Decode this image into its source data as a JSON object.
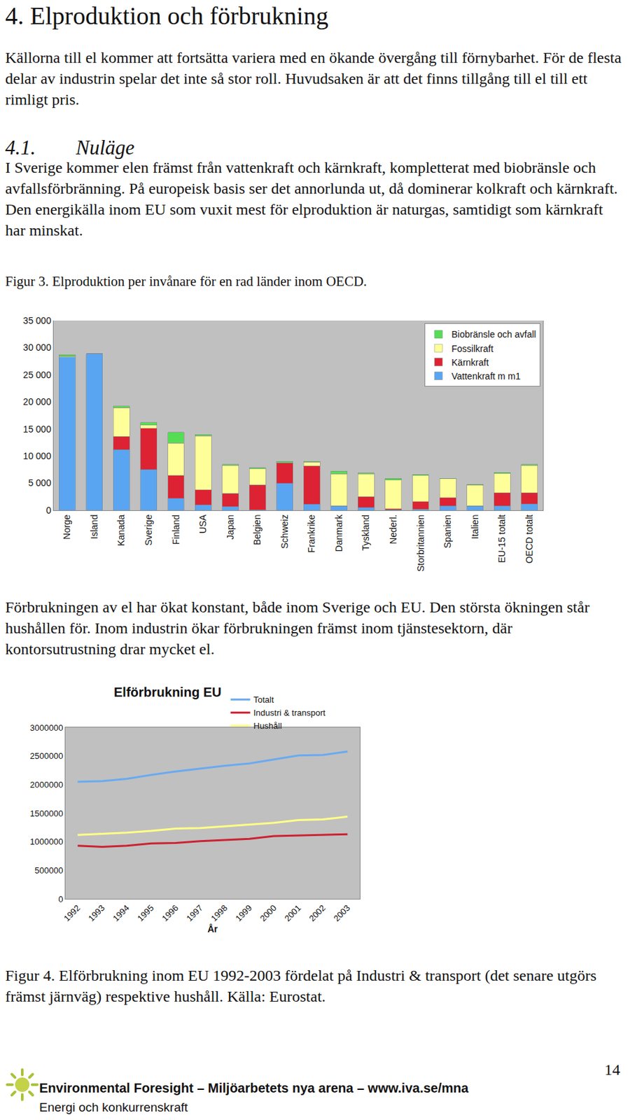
{
  "document": {
    "heading": "4. Elproduktion och förbrukning",
    "intro": "Källorna till el kommer att fortsätta variera med en ökande övergång till förnybarhet. För de flesta delar av industrin spelar det inte så stor roll. Huvudsaken är att det finns tillgång till el till ett rimligt pris.",
    "section": {
      "number": "4.1.",
      "title": "Nuläge"
    },
    "paragraph1": "I Sverige kommer elen främst från vattenkraft och kärnkraft, kompletterat med biobränsle och avfallsförbränning. På europeisk basis ser det annorlunda ut, då dominerar kolkraft och kärnkraft. Den energikälla inom EU som vuxit mest för elproduktion är naturgas, samtidigt som kärnkraft har minskat.",
    "figure3_caption": "Figur 3. Elproduktion per invånare för en rad länder inom OECD.",
    "paragraph2": "Förbrukningen av el har ökat konstant, både inom Sverige och EU. Den största ökningen står hushållen för. Inom industrin ökar förbrukningen främst inom tjänstesektorn, där kontorsutrustning drar mycket el.",
    "figure4_caption": "Figur 4. Elförbrukning inom EU 1992-2003 fördelat på Industri & transport (det senare utgörs främst järnväg) respektive hushåll. Källa: Eurostat.",
    "footer": {
      "line1": "Environmental Foresight – Miljöarbetets nya arena – www.iva.se/mna",
      "line2": "Energi och konkurrenskraft",
      "page": 14
    }
  },
  "chart_data": [
    {
      "type": "bar",
      "stacked": true,
      "grid": false,
      "legend": "top right",
      "categories": [
        "Norge",
        "Island",
        "Kanada",
        "Sverige",
        "Finland",
        "USA",
        "Japan",
        "Belgien",
        "Schweiz",
        "Frankrike",
        "Danmark",
        "Tyskland",
        "Nederl.",
        "Storbritannien",
        "Spanien",
        "Italien",
        "EU-15 totalt",
        "OECD totalt"
      ],
      "series": [
        {
          "name": "Vattenkraft m m1",
          "color": "#5aa5f2",
          "values": [
            28300,
            28900,
            11200,
            7500,
            2200,
            1000,
            700,
            100,
            5000,
            1100,
            800,
            500,
            100,
            200,
            800,
            800,
            800,
            1200
          ]
        },
        {
          "name": "Kärnkraft",
          "color": "#dd2233",
          "values": [
            0,
            0,
            2400,
            7600,
            4200,
            2800,
            2400,
            4600,
            3700,
            7100,
            0,
            2000,
            200,
            1400,
            1500,
            0,
            2400,
            2000
          ]
        },
        {
          "name": "Fossilkraft",
          "color": "#ffff99",
          "values": [
            100,
            0,
            5300,
            600,
            6000,
            9900,
            5200,
            3000,
            100,
            700,
            5900,
            4200,
            5300,
            4800,
            3500,
            3900,
            3600,
            5100
          ]
        },
        {
          "name": "Biobränsle och avfall",
          "color": "#55dd55",
          "values": [
            300,
            0,
            300,
            500,
            2000,
            300,
            200,
            200,
            200,
            100,
            500,
            200,
            300,
            200,
            100,
            100,
            200,
            200
          ]
        }
      ],
      "ylim": [
        0,
        35000
      ],
      "yticks": [
        0,
        {
          "value": 5000,
          "label": "5 000"
        },
        {
          "value": 10000,
          "label": "10 000"
        },
        {
          "value": 15000,
          "label": "15 000"
        },
        {
          "value": 20000,
          "label": "20 000"
        },
        {
          "value": 25000,
          "label": "25 000"
        },
        {
          "value": 30000,
          "label": "30 000"
        },
        {
          "value": 35000,
          "label": "35 000"
        }
      ]
    },
    {
      "type": "line",
      "title": "Elförbrukning EU",
      "xlabel": "År",
      "grid": false,
      "legend": "top",
      "categories": [
        "1992",
        "1993",
        "1994",
        "1995",
        "1996",
        "1997",
        "1998",
        "1999",
        "2000",
        "2001",
        "2002",
        "2003"
      ],
      "series": [
        {
          "name": "Totalt",
          "color": "#6aaaf0",
          "values": [
            2050000,
            2060000,
            2100000,
            2170000,
            2230000,
            2280000,
            2330000,
            2370000,
            2440000,
            2510000,
            2520000,
            2580000
          ]
        },
        {
          "name": "Industri & transport",
          "color": "#cc2233",
          "values": [
            930000,
            910000,
            930000,
            970000,
            980000,
            1010000,
            1030000,
            1050000,
            1100000,
            1110000,
            1120000,
            1130000
          ]
        },
        {
          "name": "Hushåll",
          "color": "#ffff88",
          "values": [
            1120000,
            1140000,
            1160000,
            1190000,
            1230000,
            1240000,
            1270000,
            1300000,
            1330000,
            1380000,
            1390000,
            1440000
          ]
        }
      ],
      "ylim": [
        0,
        3000000
      ],
      "yticks": [
        0,
        500000,
        1000000,
        1500000,
        2000000,
        2500000,
        3000000
      ]
    }
  ]
}
